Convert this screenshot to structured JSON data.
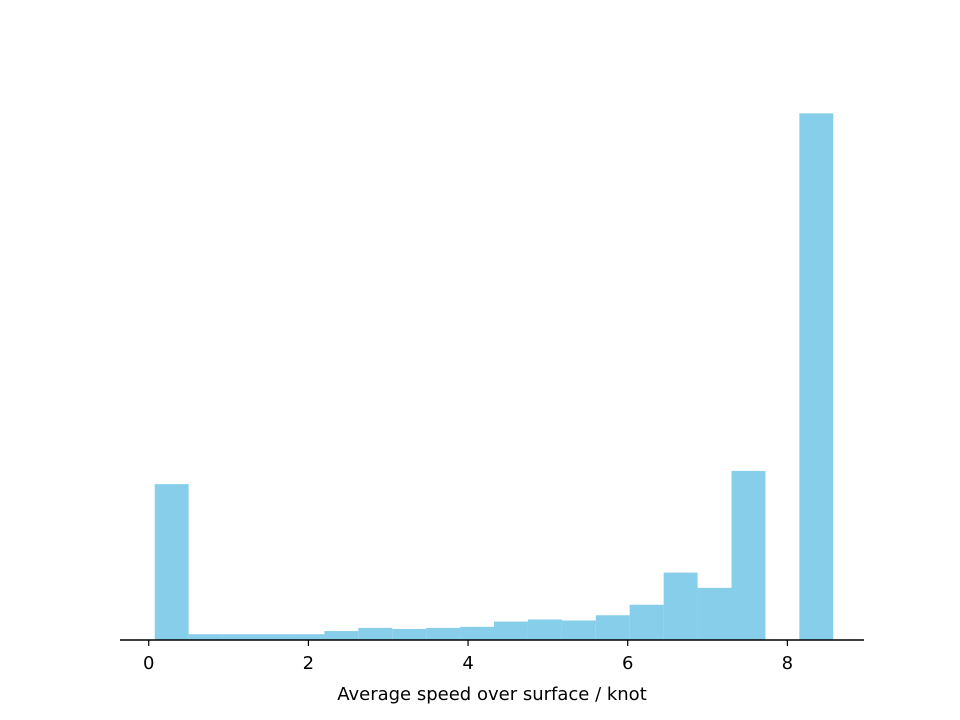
{
  "chart_data": {
    "type": "bar",
    "title": "",
    "xlabel": "Average speed over surface / knot",
    "ylabel": "",
    "xlim": [
      -0.36,
      8.96
    ],
    "ylim": [
      0,
      1.05
    ],
    "x_ticks": [
      0,
      2,
      4,
      6,
      8
    ],
    "y_axis_visible": false,
    "grid": false,
    "bar_color": "#87CEEB",
    "bin_width": 0.425,
    "bins": [
      {
        "x0": 0.075,
        "x1": 0.5,
        "value": 0.296
      },
      {
        "x0": 0.5,
        "x1": 0.925,
        "value": 0.011
      },
      {
        "x0": 0.925,
        "x1": 1.35,
        "value": 0.011
      },
      {
        "x0": 1.35,
        "x1": 1.775,
        "value": 0.011
      },
      {
        "x0": 1.775,
        "x1": 2.2,
        "value": 0.011
      },
      {
        "x0": 2.2,
        "x1": 2.625,
        "value": 0.017
      },
      {
        "x0": 2.625,
        "x1": 3.05,
        "value": 0.023
      },
      {
        "x0": 3.05,
        "x1": 3.475,
        "value": 0.021
      },
      {
        "x0": 3.475,
        "x1": 3.9,
        "value": 0.023
      },
      {
        "x0": 3.9,
        "x1": 4.325,
        "value": 0.025
      },
      {
        "x0": 4.325,
        "x1": 4.75,
        "value": 0.035
      },
      {
        "x0": 4.75,
        "x1": 5.175,
        "value": 0.039
      },
      {
        "x0": 5.175,
        "x1": 5.6,
        "value": 0.037
      },
      {
        "x0": 5.6,
        "x1": 6.025,
        "value": 0.047
      },
      {
        "x0": 6.025,
        "x1": 6.45,
        "value": 0.067
      },
      {
        "x0": 6.45,
        "x1": 6.875,
        "value": 0.128
      },
      {
        "x0": 6.875,
        "x1": 7.3,
        "value": 0.099
      },
      {
        "x0": 7.3,
        "x1": 7.725,
        "value": 0.321
      },
      {
        "x0": 8.15,
        "x1": 8.575,
        "value": 1.0
      }
    ]
  }
}
